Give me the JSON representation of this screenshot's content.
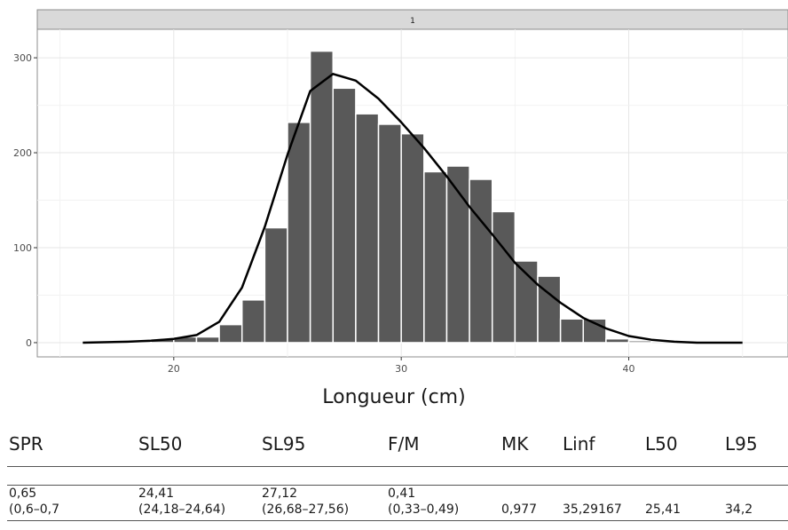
{
  "chart_data": {
    "type": "bar",
    "facet_label": "1",
    "xlabel": "Longueur (cm)",
    "ylabel": "",
    "xlim": [
      14,
      47
    ],
    "ylim": [
      -15,
      330
    ],
    "x_ticks": [
      20,
      30,
      40
    ],
    "y_ticks": [
      0,
      100,
      200,
      300
    ],
    "grid": true,
    "bar_width": 1,
    "bars": {
      "x": [
        18,
        19,
        20,
        21,
        22,
        23,
        24,
        25,
        26,
        27,
        28,
        29,
        30,
        31,
        32,
        33,
        34,
        35,
        36,
        37,
        38,
        39,
        40
      ],
      "values": [
        2,
        4,
        6,
        6,
        19,
        45,
        121,
        232,
        307,
        268,
        241,
        230,
        220,
        180,
        186,
        172,
        138,
        86,
        70,
        25,
        25,
        4,
        2
      ]
    },
    "curve": {
      "x": [
        16,
        18,
        19,
        20,
        21,
        22,
        23,
        24,
        25,
        26,
        27,
        28,
        29,
        30,
        31,
        32,
        33,
        34,
        35,
        36,
        37,
        38,
        39,
        40,
        41,
        42,
        43,
        45
      ],
      "y": [
        0,
        1,
        2,
        4,
        8,
        22,
        58,
        122,
        198,
        265,
        283,
        276,
        257,
        232,
        205,
        175,
        143,
        114,
        84,
        61,
        42,
        26,
        15,
        7,
        3,
        1,
        0,
        0
      ]
    }
  },
  "table": {
    "headers": [
      "SPR",
      "SL50",
      "SL95",
      "F/M",
      "MK",
      "Linf",
      "L50",
      "L95"
    ],
    "row1": [
      "0,65",
      "24,41",
      "27,12",
      "0,41",
      "",
      "",
      "",
      ""
    ],
    "row2": [
      "(0,6–0,7",
      "(24,18–24,64)",
      "(26,68–27,56)",
      "(0,33–0,49)",
      "0,977",
      "35,29167",
      "25,41",
      "34,2"
    ]
  }
}
